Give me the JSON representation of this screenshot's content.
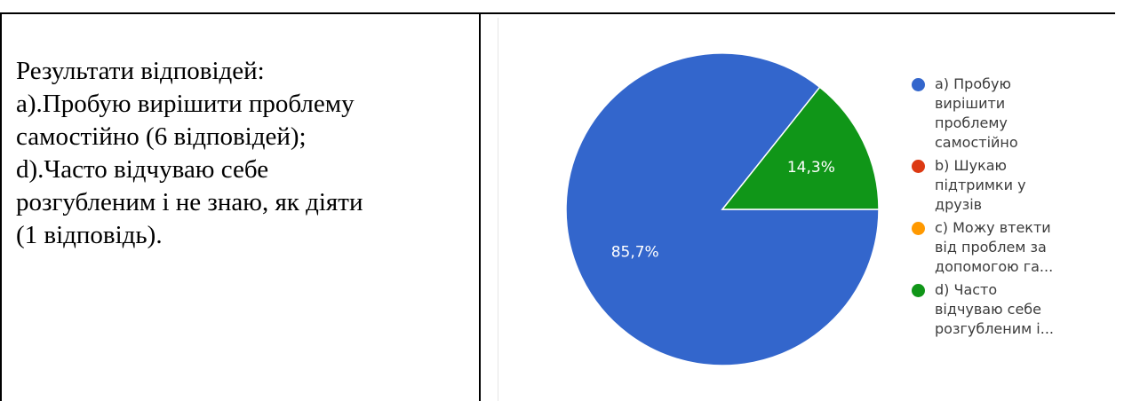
{
  "text": {
    "lines": [
      "Результати відповідей:",
      "а).Пробую вирішити проблему",
      "самостійно (6 відповідей);",
      "d).Часто відчуваю себе",
      "розгубленим і не знаю, як діяти",
      "(1 відповідь)."
    ]
  },
  "chart_data": {
    "type": "pie",
    "slices": [
      {
        "label": "a) Пробую\nвирішити\nпроблему\nсамостійно",
        "value": 85.7,
        "display": "85,7%",
        "color": "#3366cc"
      },
      {
        "label": "b) Шукаю\nпідтримки у\nдрузів",
        "value": 0,
        "display": "",
        "color": "#dc3912"
      },
      {
        "label": "c) Можу втекти\nвід проблем за\nдопомогою га...",
        "value": 0,
        "display": "",
        "color": "#ff9900"
      },
      {
        "label": "d) Часто\nвідчуваю себе\nрозгубленим і...",
        "value": 14.3,
        "display": "14,3%",
        "color": "#109618"
      }
    ],
    "legend_position": "right"
  }
}
